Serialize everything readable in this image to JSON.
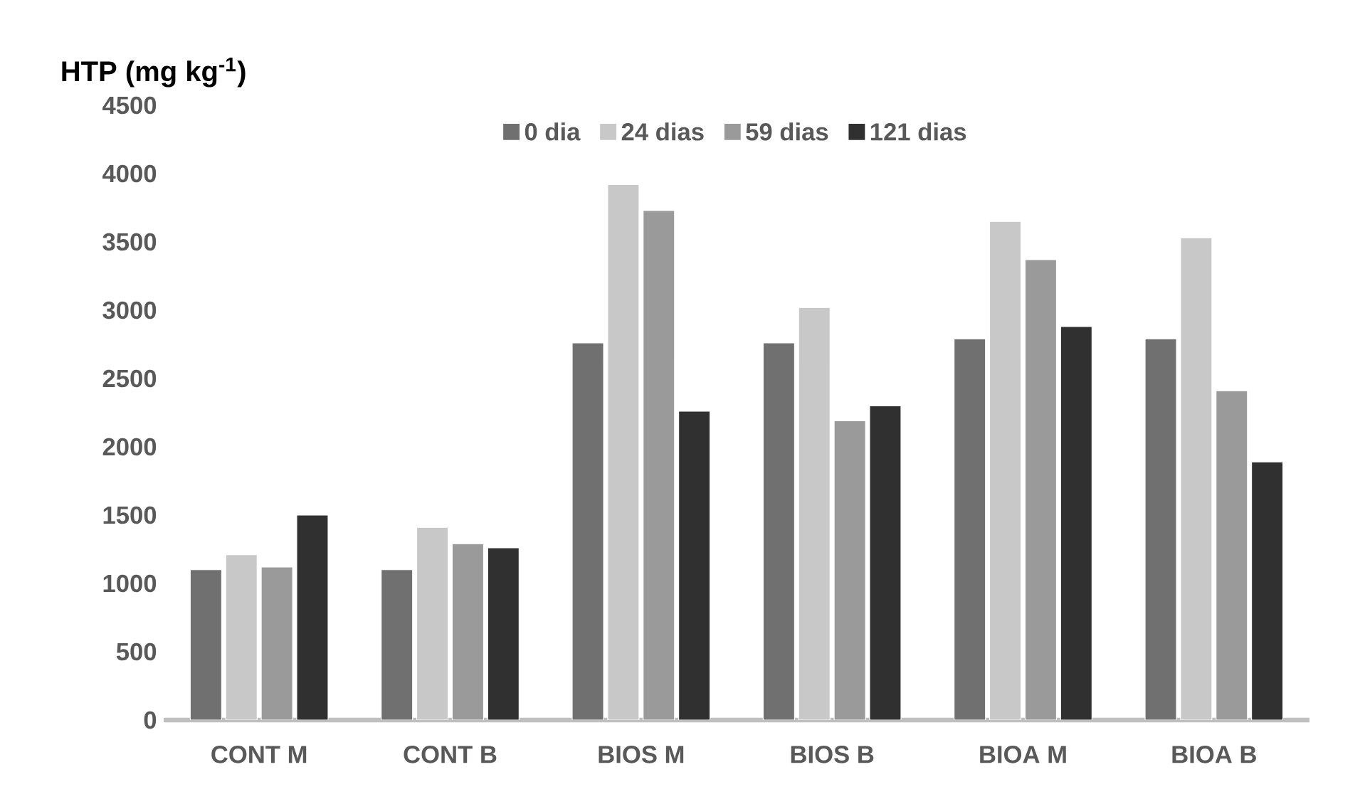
{
  "chart_data": {
    "type": "bar",
    "ylabel": "HTP (mg kg$^{-1}$)",
    "categories": [
      "CONT M",
      "CONT B",
      "BIOS M",
      "BIOS B",
      "BIOA M",
      "BIOA B"
    ],
    "series": [
      {
        "name": "0 dia",
        "color": "#707070",
        "values": [
          1100,
          1100,
          2760,
          2760,
          2790,
          2790
        ]
      },
      {
        "name": "24 dias",
        "color": "#c8c8c8",
        "values": [
          1210,
          1410,
          3920,
          3020,
          3650,
          3530
        ]
      },
      {
        "name": "59 dias",
        "color": "#9a9a9a",
        "values": [
          1120,
          1290,
          3730,
          2190,
          3370,
          2410
        ]
      },
      {
        "name": "121 dias",
        "color": "#303030",
        "values": [
          1500,
          1260,
          2260,
          2300,
          2880,
          1890
        ]
      }
    ],
    "ylim": [
      0,
      4500
    ],
    "yticks": [
      0,
      500,
      1000,
      1500,
      2000,
      2500,
      3000,
      3500,
      4000,
      4500
    ],
    "grid": false,
    "legend": "top"
  }
}
